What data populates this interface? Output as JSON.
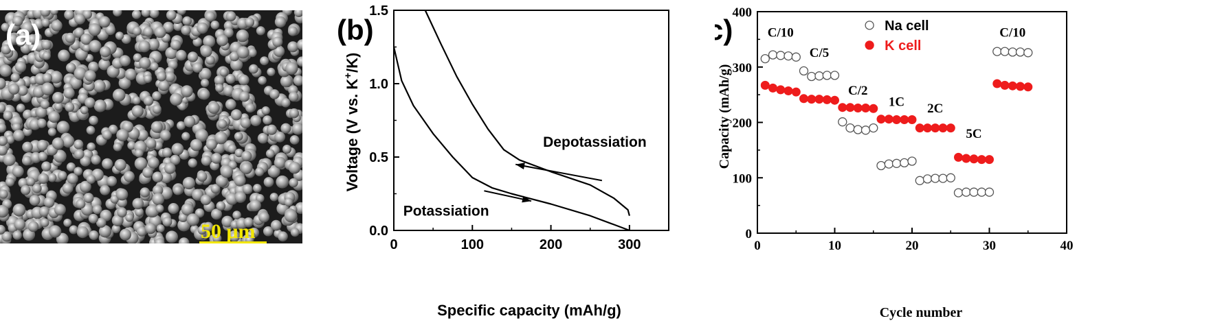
{
  "panels": {
    "a": {
      "letter": "(a)",
      "scale_bar_label": "50 μm"
    },
    "b": {
      "letter": "(b)"
    },
    "c": {
      "letter": "(c)"
    }
  },
  "colors": {
    "k_cell": "#ee1c1c",
    "na_cell_stroke": "#555555",
    "scale_bar": "#f2e600",
    "axis": "#000000"
  },
  "chart_data": [
    {
      "type": "line",
      "panel": "b",
      "xlabel": "Specific capacity (mAh/g)",
      "ylabel": "Voltage (V vs. K+/K)",
      "ylabel_parts": {
        "pre": "Voltage (V vs. K",
        "sup1": "+",
        "mid": "/K)"
      },
      "xlim": [
        0,
        350
      ],
      "ylim": [
        0,
        1.5
      ],
      "xticks": [
        "0",
        "100",
        "200",
        "300"
      ],
      "yticks": [
        "0.0",
        "0.5",
        "1.0",
        "1.5"
      ],
      "series": [
        {
          "name": "Potassiation",
          "x": [
            0,
            10,
            25,
            50,
            75,
            100,
            125,
            150,
            200,
            250,
            280,
            300
          ],
          "y": [
            1.25,
            1.02,
            0.85,
            0.66,
            0.5,
            0.36,
            0.29,
            0.25,
            0.18,
            0.1,
            0.04,
            0
          ]
        },
        {
          "name": "Depotassiation",
          "x": [
            40,
            60,
            80,
            100,
            120,
            140,
            160,
            200,
            250,
            280,
            298,
            300
          ],
          "y": [
            1.5,
            1.27,
            1.05,
            0.86,
            0.69,
            0.55,
            0.48,
            0.4,
            0.31,
            0.22,
            0.14,
            0.1
          ]
        }
      ],
      "annotations": [
        {
          "text": "Depotassiation",
          "x": 190,
          "y": 0.57,
          "arrow_from": [
            265,
            0.34
          ],
          "arrow_to": [
            155,
            0.45
          ]
        },
        {
          "text": "Potassiation",
          "x": 12,
          "y": 0.1,
          "arrow_from": [
            115,
            0.27
          ],
          "arrow_to": [
            175,
            0.2
          ]
        }
      ]
    },
    {
      "type": "scatter",
      "panel": "c",
      "xlabel": "Cycle number",
      "ylabel": "Capacity (mAh/g)",
      "xlim": [
        0,
        40
      ],
      "ylim": [
        0,
        400
      ],
      "xticks": [
        "0",
        "10",
        "20",
        "30",
        "40"
      ],
      "yticks": [
        "0",
        "100",
        "200",
        "300",
        "400"
      ],
      "legend": "top-center",
      "series": [
        {
          "name": "Na cell",
          "marker": "open-circle",
          "x": [
            1,
            2,
            3,
            4,
            5,
            6,
            7,
            8,
            9,
            10,
            11,
            12,
            13,
            14,
            15,
            16,
            17,
            18,
            19,
            20,
            21,
            22,
            23,
            24,
            25,
            26,
            27,
            28,
            29,
            30,
            31,
            32,
            33,
            34,
            35
          ],
          "y": [
            315,
            322,
            321,
            320,
            318,
            293,
            283,
            284,
            285,
            285,
            201,
            190,
            187,
            186,
            190,
            122,
            125,
            126,
            127,
            130,
            95,
            98,
            99,
            99,
            100,
            73,
            74,
            74,
            74,
            74,
            328,
            328,
            327,
            327,
            326
          ]
        },
        {
          "name": "K cell",
          "marker": "filled-circle",
          "x": [
            1,
            2,
            3,
            4,
            5,
            6,
            7,
            8,
            9,
            10,
            11,
            12,
            13,
            14,
            15,
            16,
            17,
            18,
            19,
            20,
            21,
            22,
            23,
            24,
            25,
            26,
            27,
            28,
            29,
            30,
            31,
            32,
            33,
            34,
            35
          ],
          "y": [
            267,
            262,
            259,
            257,
            255,
            243,
            242,
            242,
            241,
            240,
            227,
            227,
            226,
            226,
            225,
            206,
            206,
            205,
            205,
            205,
            190,
            190,
            190,
            190,
            190,
            137,
            135,
            134,
            133,
            133,
            270,
            267,
            266,
            265,
            264
          ]
        }
      ],
      "rate_labels": [
        {
          "text": "C/10",
          "x": 3,
          "y": 355
        },
        {
          "text": "C/5",
          "x": 8,
          "y": 318
        },
        {
          "text": "C/2",
          "x": 13,
          "y": 250
        },
        {
          "text": "1C",
          "x": 18,
          "y": 230
        },
        {
          "text": "2C",
          "x": 23,
          "y": 218
        },
        {
          "text": "5C",
          "x": 28,
          "y": 172
        },
        {
          "text": "C/10",
          "x": 33,
          "y": 355
        }
      ]
    }
  ]
}
